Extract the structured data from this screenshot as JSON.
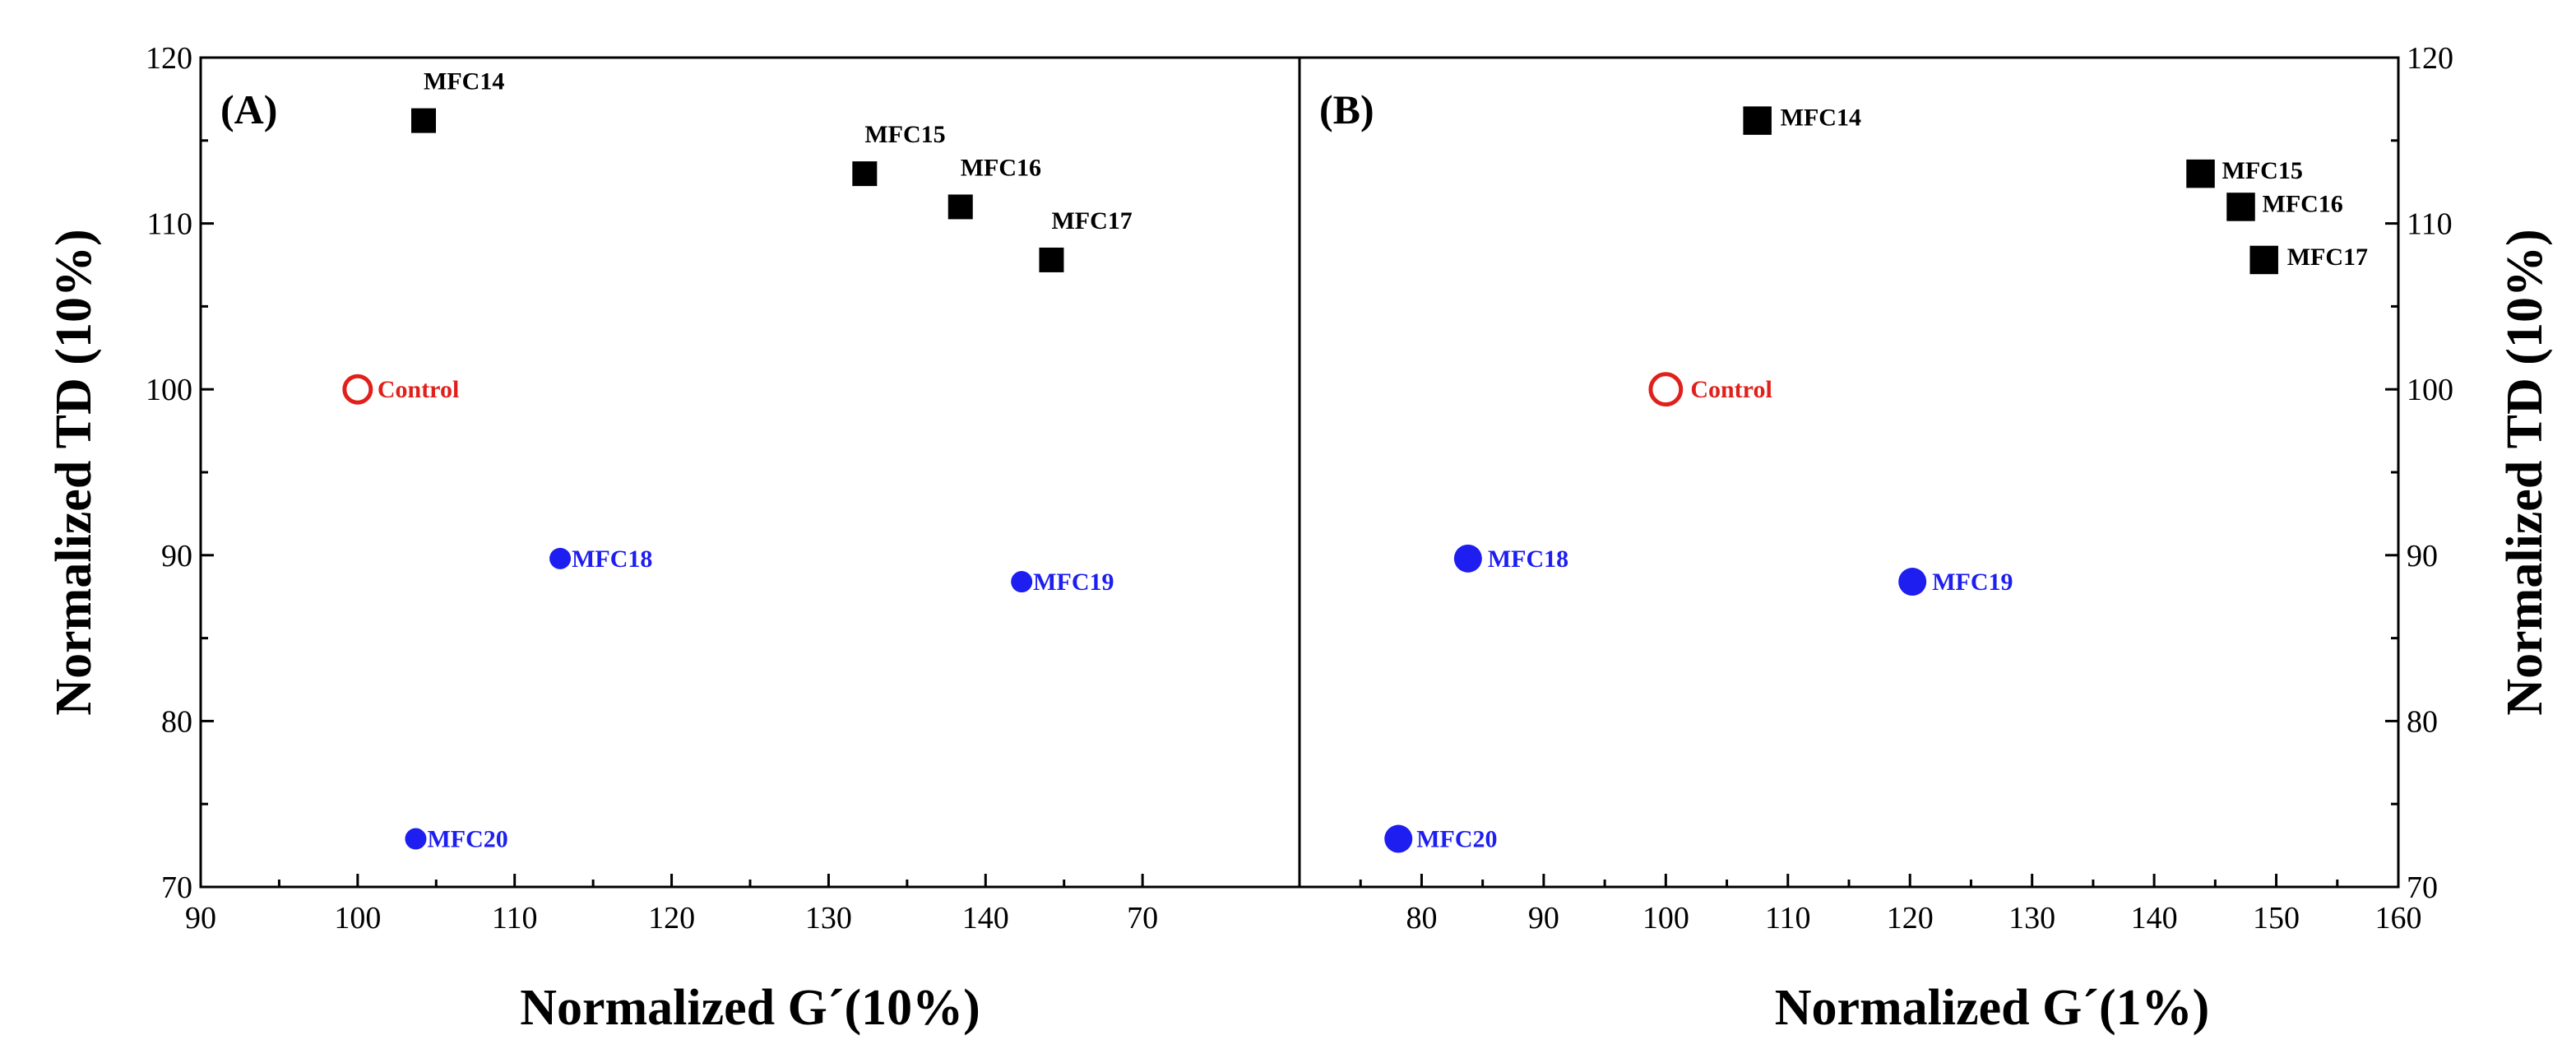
{
  "chart_data": [
    {
      "type": "scatter",
      "panel_label": "(A)",
      "xlabel": "Normalized G´(10%)",
      "ylabel": "Normalized TD (10%)",
      "xlim": [
        90,
        160
      ],
      "ylim": [
        70,
        120
      ],
      "x_tick_labels": [
        "90",
        "100",
        "110",
        "120",
        "130",
        "140",
        "70"
      ],
      "y_ticks": [
        "70",
        "80",
        "90",
        "100",
        "110",
        "120"
      ],
      "y_axis_side": "left",
      "colors": {
        "control": "#e0201b",
        "mfc_black": "#000000",
        "mfc_blue": "#1e1ef0"
      },
      "series": [
        {
          "marker": "open-circle",
          "color": "#e0201b",
          "points": [
            {
              "label": "Control",
              "x": 100,
              "y": 100
            }
          ]
        },
        {
          "marker": "square",
          "color": "#000000",
          "points": [
            {
              "label": "MFC14",
              "x": 104.2,
              "y": 116.2
            },
            {
              "label": "MFC15",
              "x": 132.3,
              "y": 113.0
            },
            {
              "label": "MFC16",
              "x": 138.4,
              "y": 111.0
            },
            {
              "label": "MFC17",
              "x": 144.2,
              "y": 107.8
            }
          ]
        },
        {
          "marker": "filled-circle",
          "color": "#1e1ef0",
          "points": [
            {
              "label": "MFC18",
              "x": 112.9,
              "y": 89.8
            },
            {
              "label": "MFC19",
              "x": 142.3,
              "y": 88.4
            },
            {
              "label": "MFC20",
              "x": 103.7,
              "y": 72.9
            }
          ]
        }
      ]
    },
    {
      "type": "scatter",
      "panel_label": "(B)",
      "xlabel": "Normalized G´(1%)",
      "ylabel": "Normalized TD (10%)",
      "xlim": [
        70,
        160
      ],
      "ylim": [
        70,
        120
      ],
      "x_tick_labels": [
        "",
        "80",
        "90",
        "100",
        "110",
        "120",
        "130",
        "140",
        "150",
        "160"
      ],
      "y_ticks": [
        "70",
        "80",
        "90",
        "100",
        "110",
        "120"
      ],
      "y_axis_side": "right",
      "colors": {
        "control": "#e0201b",
        "mfc_black": "#000000",
        "mfc_blue": "#1e1ef0"
      },
      "series": [
        {
          "marker": "open-circle",
          "color": "#e0201b",
          "points": [
            {
              "label": "Control",
              "x": 100,
              "y": 100
            }
          ]
        },
        {
          "marker": "square",
          "color": "#000000",
          "points": [
            {
              "label": "MFC14",
              "x": 107.5,
              "y": 116.2
            },
            {
              "label": "MFC15",
              "x": 143.8,
              "y": 113.0
            },
            {
              "label": "MFC16",
              "x": 147.1,
              "y": 111.0
            },
            {
              "label": "MFC17",
              "x": 149.0,
              "y": 107.8
            }
          ]
        },
        {
          "marker": "filled-circle",
          "color": "#1e1ef0",
          "points": [
            {
              "label": "MFC18",
              "x": 83.8,
              "y": 89.8
            },
            {
              "label": "MFC19",
              "x": 120.2,
              "y": 88.4
            },
            {
              "label": "MFC20",
              "x": 78.1,
              "y": 72.9
            }
          ]
        }
      ]
    }
  ]
}
